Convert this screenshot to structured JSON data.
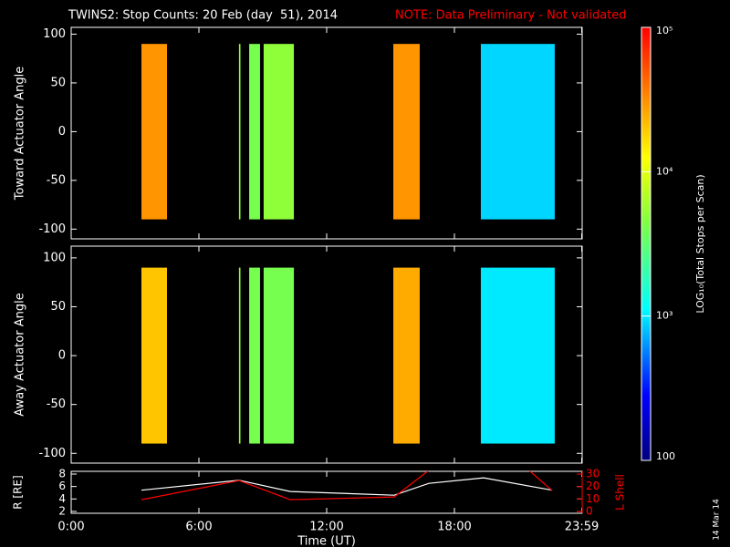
{
  "title": "TWINS2: Stop Counts: 20 Feb (day  51), 2014",
  "note": "NOTE: Data Preliminary - Not validated",
  "date_stamp": "14 Mar 14",
  "colorbar": {
    "label": "LOG₁₀(Total Stops per Scan)",
    "log": true,
    "lim": [
      100,
      100000
    ],
    "ticks": [
      {
        "value": 100000,
        "label": "10⁵"
      },
      {
        "value": 10000,
        "label": "10⁴"
      },
      {
        "value": 1000,
        "label": "10³"
      },
      100
    ]
  },
  "chart_data": [
    {
      "type": "spectrogram",
      "ylabel": "Toward Actuator Angle",
      "xlim": [
        0,
        24
      ],
      "ylim": [
        -110,
        107
      ],
      "yticks": [
        -100,
        -50,
        0,
        50,
        100
      ],
      "angle_range": [
        -90,
        90
      ],
      "x": [
        3.3,
        7.88,
        8.36,
        9.04,
        15.13,
        19.24
      ],
      "x_end": [
        4.5,
        7.95,
        8.87,
        10.46,
        16.37,
        22.71
      ],
      "values": [
        30000,
        5000,
        4000,
        5000,
        30000,
        900
      ]
    },
    {
      "type": "spectrogram",
      "ylabel": "Away Actuator Angle",
      "xlim": [
        0,
        24
      ],
      "ylim": [
        -110,
        112
      ],
      "yticks": [
        -100,
        -50,
        0,
        50,
        100
      ],
      "angle_range": [
        -90,
        90
      ],
      "x": [
        3.3,
        7.88,
        8.36,
        9.04,
        15.13,
        19.24
      ],
      "x_end": [
        4.5,
        7.95,
        8.87,
        10.46,
        16.37,
        22.71
      ],
      "values": [
        20000,
        5000,
        4000,
        4000,
        25000,
        1000
      ]
    },
    {
      "type": "line",
      "xlabel": "Time (UT)",
      "ylabel": "R [RE]",
      "y2label": "L Shell",
      "xlim": [
        0,
        24
      ],
      "ylim": [
        1.7,
        8.44
      ],
      "y2lim": [
        -1.5,
        32.2
      ],
      "xticks": [
        {
          "value": 0,
          "label": "0:00"
        },
        {
          "value": 6,
          "label": "6:00"
        },
        {
          "value": 12,
          "label": "12:00"
        },
        {
          "value": 18,
          "label": "18:00"
        },
        {
          "value": 23.98,
          "label": "23:59"
        }
      ],
      "yticks": [
        2,
        4,
        6,
        8
      ],
      "y2ticks": [
        0,
        10,
        20,
        30
      ],
      "y2color": "#ff0000",
      "series": [
        {
          "color": "#ffffff",
          "x": [
            3.3,
            7.89,
            10.29,
            15.17,
            16.8,
            19.37,
            22.59
          ],
          "values": [
            5.4,
            7.0,
            5.2,
            4.6,
            6.5,
            7.4,
            5.4
          ]
        },
        {
          "color": "#ff0000",
          "axis": "y2",
          "x": [
            3.3,
            7.89,
            10.29,
            15.17,
            16.8,
            19.37,
            21.5,
            22.59
          ],
          "values": [
            9.4,
            24.8,
            9.4,
            11.6,
            33,
            null,
            33,
            16.7
          ]
        }
      ]
    }
  ]
}
